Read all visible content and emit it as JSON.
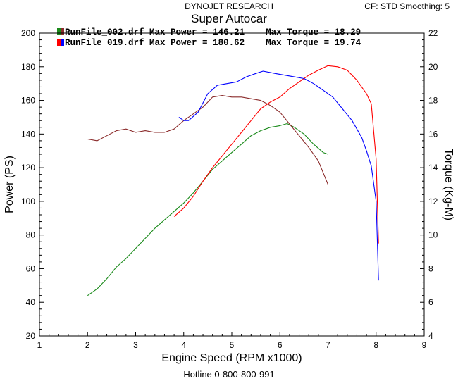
{
  "header": {
    "brand": "DYNOJET RESEARCH",
    "settings": "CF: STD  Smoothing: 5"
  },
  "footer": {
    "hotline": "Hotline 0-800-800-991"
  },
  "chart_data": {
    "type": "line",
    "title": "Super Autocar",
    "xlabel": "Engine Speed (RPM x1000)",
    "ylabel": "Power (PS)",
    "y2label": "Torque (Kg-M)",
    "xlim": [
      1,
      9
    ],
    "ylim": [
      20,
      200
    ],
    "y2lim": [
      4,
      22
    ],
    "xticks": [
      "1",
      "2",
      "3",
      "4",
      "5",
      "6",
      "7",
      "8",
      "9"
    ],
    "yticks": [
      "20",
      "40",
      "60",
      "80",
      "100",
      "120",
      "140",
      "160",
      "180",
      "200"
    ],
    "y2ticks": [
      "4",
      "6",
      "8",
      "10",
      "12",
      "14",
      "16",
      "18",
      "20",
      "22"
    ],
    "grid": false,
    "legend": [
      {
        "file": "RunFile_002.drf",
        "power_label": "Max Power = 146.21",
        "torque_label": "Max Torque = 18.29",
        "colors": [
          "#1a8a1a",
          "#8b2c2c"
        ]
      },
      {
        "file": "RunFile_019.drf",
        "power_label": "Max Power = 180.62",
        "torque_label": "Max Torque = 19.74",
        "colors": [
          "#ff0000",
          "#0000ff"
        ]
      }
    ],
    "series": [
      {
        "run": "RunFile_002.drf",
        "measure": "power",
        "axis": "left",
        "color": "#1a8a1a",
        "points": [
          [
            2.0,
            44
          ],
          [
            2.2,
            48
          ],
          [
            2.4,
            54
          ],
          [
            2.6,
            61
          ],
          [
            2.8,
            66
          ],
          [
            3.0,
            72
          ],
          [
            3.2,
            78
          ],
          [
            3.4,
            84
          ],
          [
            3.6,
            89
          ],
          [
            3.8,
            94
          ],
          [
            4.0,
            99
          ],
          [
            4.2,
            105
          ],
          [
            4.4,
            112
          ],
          [
            4.6,
            119
          ],
          [
            4.8,
            124
          ],
          [
            5.0,
            129
          ],
          [
            5.2,
            134
          ],
          [
            5.4,
            139
          ],
          [
            5.6,
            142
          ],
          [
            5.8,
            144
          ],
          [
            6.0,
            145
          ],
          [
            6.15,
            146.2
          ],
          [
            6.3,
            144
          ],
          [
            6.5,
            140
          ],
          [
            6.7,
            134
          ],
          [
            6.9,
            129
          ],
          [
            7.0,
            128
          ]
        ]
      },
      {
        "run": "RunFile_002.drf",
        "measure": "torque",
        "axis": "right",
        "color": "#8b2c2c",
        "points": [
          [
            2.0,
            15.7
          ],
          [
            2.2,
            15.6
          ],
          [
            2.4,
            15.9
          ],
          [
            2.6,
            16.2
          ],
          [
            2.8,
            16.3
          ],
          [
            3.0,
            16.1
          ],
          [
            3.2,
            16.2
          ],
          [
            3.4,
            16.1
          ],
          [
            3.6,
            16.1
          ],
          [
            3.8,
            16.3
          ],
          [
            4.0,
            16.8
          ],
          [
            4.2,
            17.2
          ],
          [
            4.4,
            17.6
          ],
          [
            4.6,
            18.2
          ],
          [
            4.8,
            18.29
          ],
          [
            5.0,
            18.2
          ],
          [
            5.2,
            18.2
          ],
          [
            5.4,
            18.1
          ],
          [
            5.6,
            18.0
          ],
          [
            5.8,
            17.7
          ],
          [
            6.0,
            17.3
          ],
          [
            6.2,
            16.6
          ],
          [
            6.4,
            15.9
          ],
          [
            6.6,
            15.2
          ],
          [
            6.8,
            14.4
          ],
          [
            7.0,
            13.0
          ]
        ]
      },
      {
        "run": "RunFile_019.drf",
        "measure": "power",
        "axis": "left",
        "color": "#ff0000",
        "points": [
          [
            3.8,
            91
          ],
          [
            4.0,
            96
          ],
          [
            4.2,
            103
          ],
          [
            4.4,
            112
          ],
          [
            4.6,
            120
          ],
          [
            4.8,
            127
          ],
          [
            5.0,
            134
          ],
          [
            5.2,
            141
          ],
          [
            5.4,
            148
          ],
          [
            5.6,
            155
          ],
          [
            5.8,
            159
          ],
          [
            6.0,
            162
          ],
          [
            6.2,
            167
          ],
          [
            6.4,
            171
          ],
          [
            6.6,
            175
          ],
          [
            6.8,
            178
          ],
          [
            7.0,
            180.6
          ],
          [
            7.2,
            180
          ],
          [
            7.4,
            178
          ],
          [
            7.6,
            172
          ],
          [
            7.8,
            164
          ],
          [
            7.9,
            158
          ],
          [
            8.0,
            125
          ],
          [
            8.05,
            75
          ]
        ]
      },
      {
        "run": "RunFile_019.drf",
        "measure": "torque",
        "axis": "right",
        "color": "#0000ff",
        "points": [
          [
            3.9,
            17.0
          ],
          [
            4.0,
            16.8
          ],
          [
            4.1,
            16.8
          ],
          [
            4.3,
            17.3
          ],
          [
            4.5,
            18.4
          ],
          [
            4.7,
            18.9
          ],
          [
            4.9,
            19.0
          ],
          [
            5.1,
            19.1
          ],
          [
            5.3,
            19.4
          ],
          [
            5.5,
            19.6
          ],
          [
            5.65,
            19.74
          ],
          [
            5.9,
            19.6
          ],
          [
            6.1,
            19.5
          ],
          [
            6.3,
            19.4
          ],
          [
            6.5,
            19.3
          ],
          [
            6.7,
            19.0
          ],
          [
            6.9,
            18.6
          ],
          [
            7.1,
            18.2
          ],
          [
            7.3,
            17.5
          ],
          [
            7.5,
            16.8
          ],
          [
            7.7,
            15.8
          ],
          [
            7.8,
            15.0
          ],
          [
            7.9,
            14.1
          ],
          [
            8.0,
            12.0
          ],
          [
            8.05,
            7.3
          ]
        ]
      }
    ]
  }
}
